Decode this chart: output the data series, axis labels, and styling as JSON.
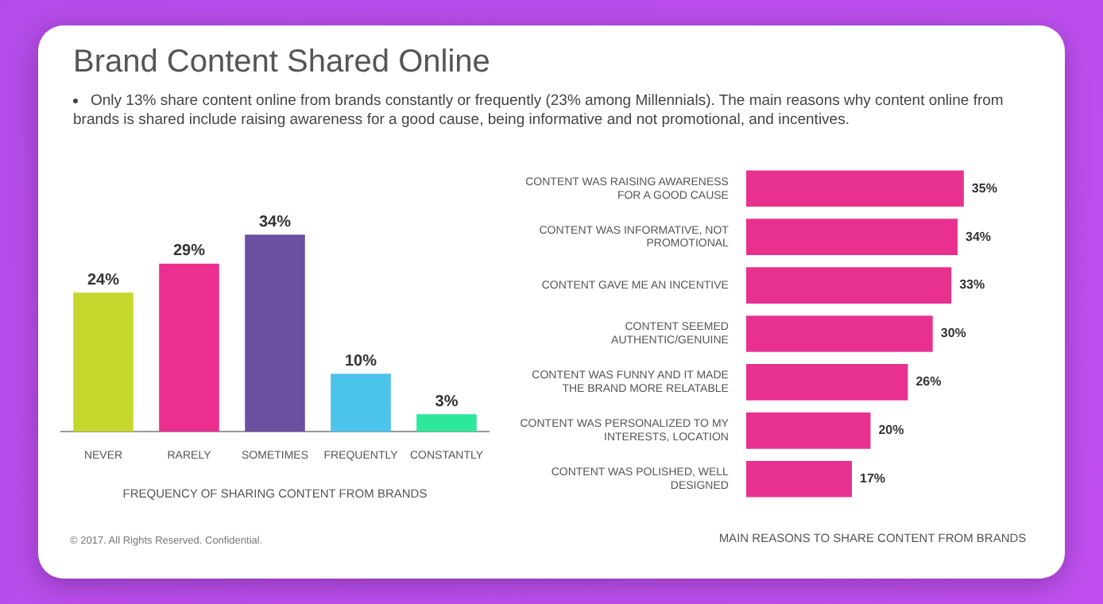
{
  "chart_data": [
    {
      "type": "bar",
      "title": "Brand Content Shared Online",
      "subtitle": "Only 13% share content online from brands constantly or frequently (23% among Millennials). The main reasons why content online from brands is shared include raising awareness for a good cause, being informative and not promotional, and incentives.",
      "categories": [
        "NEVER",
        "RARELY",
        "SOMETIMES",
        "FREQUENTLY",
        "CONSTANTLY"
      ],
      "values": [
        24,
        29,
        34,
        10,
        3
      ],
      "colors": [
        "#c5d82e",
        "#ea2f8f",
        "#6c4fa0",
        "#4cc3ea",
        "#2ee89a"
      ],
      "value_labels": [
        "24%",
        "29%",
        "34%",
        "10%",
        "3%"
      ],
      "xlabel": "FREQUENCY OF SHARING CONTENT FROM BRANDS",
      "tick_labels": "x",
      "annotations": [
        "© 2017. All Rights Reserved. Confidential."
      ]
    },
    {
      "type": "bar",
      "orientation": "horizontal",
      "categories": [
        "CONTENT WAS RAISING AWARENESS FOR A GOOD CAUSE",
        "CONTENT WAS INFORMATIVE, NOT PROMOTIONAL",
        "CONTENT GAVE ME AN INCENTIVE",
        "CONTENT SEEMED AUTHENTIC/GENUINE",
        "CONTENT WAS FUNNY AND IT MADE THE BRAND MORE RELATABLE",
        "CONTENT WAS PERSONALIZED TO MY INTERESTS, LOCATION",
        "CONTENT WAS POLISHED, WELL DESIGNED"
      ],
      "values": [
        35,
        34,
        33,
        30,
        26,
        20,
        17
      ],
      "color": "#e8318f",
      "value_labels": [
        "35%",
        "34%",
        "33%",
        "30%",
        "26%",
        "20%",
        "17%"
      ],
      "xlabel": "MAIN REASONS TO SHARE CONTENT FROM BRANDS",
      "tick_labels": "y"
    }
  ]
}
